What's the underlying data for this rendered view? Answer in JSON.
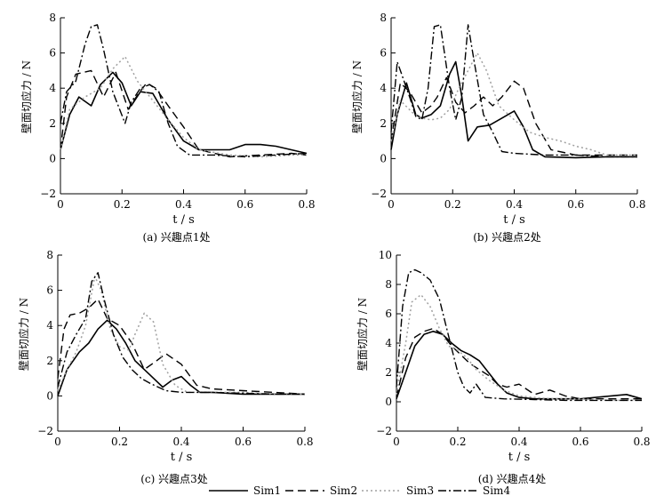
{
  "chart_data": [
    {
      "type": "line",
      "caption": "(a) 兴趣点1处",
      "xlabel": "t / s",
      "ylabel": "壁面切应力 / N",
      "xlim": [
        0,
        0.8
      ],
      "ylim": [
        -2,
        8
      ],
      "xticks": [
        0,
        0.2,
        0.4,
        0.6,
        0.8
      ],
      "xtick_labels": [
        "0",
        "0.2",
        "0.4",
        "0.6",
        "0.8"
      ],
      "yticks": [
        -2,
        0,
        2,
        4,
        6,
        8
      ],
      "ytick_labels": [
        "−2",
        "0",
        "2",
        "4",
        "6",
        "8"
      ],
      "series": [
        {
          "name": "Sim1",
          "x": [
            0,
            0.03,
            0.06,
            0.1,
            0.13,
            0.17,
            0.2,
            0.23,
            0.26,
            0.3,
            0.35,
            0.4,
            0.45,
            0.5,
            0.55,
            0.6,
            0.65,
            0.7,
            0.75,
            0.8
          ],
          "y": [
            0.5,
            2.5,
            3.5,
            3.0,
            4.2,
            4.9,
            4.3,
            3.0,
            3.8,
            3.7,
            2.2,
            1.0,
            0.5,
            0.5,
            0.5,
            0.8,
            0.8,
            0.7,
            0.5,
            0.3
          ]
        },
        {
          "name": "Sim2",
          "x": [
            0,
            0.02,
            0.05,
            0.1,
            0.14,
            0.18,
            0.22,
            0.25,
            0.28,
            0.31,
            0.35,
            0.4,
            0.45,
            0.55,
            0.65,
            0.75,
            0.8
          ],
          "y": [
            0.5,
            3.5,
            4.8,
            5.0,
            3.5,
            4.9,
            2.8,
            3.6,
            4.3,
            4.0,
            3.0,
            1.8,
            0.5,
            0.1,
            0.2,
            0.3,
            0.2
          ]
        },
        {
          "name": "Sim3",
          "x": [
            0,
            0.03,
            0.08,
            0.13,
            0.17,
            0.21,
            0.25,
            0.3,
            0.35,
            0.4,
            0.45,
            0.55,
            0.65,
            0.75,
            0.8
          ],
          "y": [
            0.5,
            2.8,
            3.5,
            4.0,
            5.1,
            5.8,
            4.4,
            3.3,
            2.2,
            1.2,
            0.5,
            0.2,
            0.1,
            0.2,
            0.2
          ]
        },
        {
          "name": "Sim4",
          "x": [
            0,
            0.02,
            0.05,
            0.08,
            0.1,
            0.12,
            0.14,
            0.17,
            0.21,
            0.23,
            0.26,
            0.29,
            0.32,
            0.35,
            0.38,
            0.42,
            0.5,
            0.6,
            0.7,
            0.8
          ],
          "y": [
            2,
            3.8,
            4.4,
            6.5,
            7.5,
            7.6,
            6.2,
            3.8,
            2.0,
            3.2,
            4.0,
            4.2,
            3.8,
            2.0,
            0.7,
            0.2,
            0.2,
            0.1,
            0.2,
            0.3
          ]
        }
      ]
    },
    {
      "type": "line",
      "caption": "(b) 兴趣点2处",
      "xlabel": "t / s",
      "ylabel": "壁面切应力 / N",
      "xlim": [
        0,
        0.8
      ],
      "ylim": [
        -2,
        8
      ],
      "xticks": [
        0,
        0.2,
        0.4,
        0.6,
        0.8
      ],
      "xtick_labels": [
        "0",
        "0.2",
        "0.4",
        "0.6",
        "0.8"
      ],
      "yticks": [
        -2,
        0,
        2,
        4,
        6,
        8
      ],
      "ytick_labels": [
        "−2",
        "0",
        "2",
        "4",
        "6",
        "8"
      ],
      "series": [
        {
          "name": "Sim1",
          "x": [
            0,
            0.02,
            0.05,
            0.08,
            0.1,
            0.13,
            0.16,
            0.19,
            0.21,
            0.23,
            0.25,
            0.28,
            0.32,
            0.36,
            0.4,
            0.43,
            0.46,
            0.5,
            0.6,
            0.7,
            0.8
          ],
          "y": [
            0.5,
            2.5,
            4.3,
            2.5,
            2.3,
            2.5,
            3.0,
            4.8,
            5.5,
            3.5,
            1.0,
            1.8,
            1.9,
            2.3,
            2.7,
            1.8,
            0.5,
            0.1,
            0.05,
            0.1,
            0.1
          ]
        },
        {
          "name": "Sim2",
          "x": [
            0,
            0.03,
            0.06,
            0.1,
            0.13,
            0.15,
            0.18,
            0.21,
            0.24,
            0.27,
            0.3,
            0.33,
            0.36,
            0.4,
            0.43,
            0.47,
            0.52,
            0.6,
            0.7,
            0.8
          ],
          "y": [
            1,
            4.3,
            3.8,
            2.6,
            3.0,
            3.5,
            4.6,
            3.2,
            2.6,
            3.0,
            3.5,
            3.0,
            3.5,
            4.4,
            4.0,
            2.0,
            0.5,
            0.2,
            0.2,
            0.2
          ]
        },
        {
          "name": "Sim3",
          "x": [
            0,
            0.03,
            0.07,
            0.1,
            0.13,
            0.16,
            0.19,
            0.22,
            0.25,
            0.28,
            0.31,
            0.35,
            0.4,
            0.45,
            0.5,
            0.55,
            0.6,
            0.65,
            0.7,
            0.8
          ],
          "y": [
            1,
            3.3,
            2.6,
            2.3,
            2.2,
            2.3,
            2.8,
            4.0,
            5.0,
            6.0,
            5.0,
            3.0,
            2.2,
            1.5,
            1.2,
            1.0,
            0.7,
            0.5,
            0.2,
            0.2
          ]
        },
        {
          "name": "Sim4",
          "x": [
            0,
            0.02,
            0.04,
            0.06,
            0.08,
            0.1,
            0.12,
            0.14,
            0.16,
            0.19,
            0.21,
            0.23,
            0.25,
            0.27,
            0.3,
            0.33,
            0.36,
            0.4,
            0.5,
            0.6,
            0.7,
            0.8
          ],
          "y": [
            1.5,
            5.5,
            4.5,
            3.5,
            2.4,
            2.2,
            4.0,
            7.5,
            7.6,
            4.0,
            2.2,
            3.5,
            7.6,
            5.5,
            2.5,
            1.5,
            0.4,
            0.3,
            0.2,
            0.2,
            0.1,
            0.1
          ]
        }
      ]
    },
    {
      "type": "line",
      "caption": "(c) 兴趣点3处",
      "xlabel": "t / s",
      "ylabel": "壁面切应力 / N",
      "xlim": [
        0,
        0.8
      ],
      "ylim": [
        -2,
        8
      ],
      "xticks": [
        0,
        0.2,
        0.4,
        0.6,
        0.8
      ],
      "xtick_labels": [
        "0",
        "0.2",
        "0.4",
        "0.6",
        "0.8"
      ],
      "yticks": [
        -2,
        0,
        2,
        4,
        6,
        8
      ],
      "ytick_labels": [
        "−2",
        "0",
        "2",
        "4",
        "6",
        "8"
      ],
      "series": [
        {
          "name": "Sim1",
          "x": [
            0,
            0.03,
            0.07,
            0.1,
            0.13,
            0.16,
            0.19,
            0.22,
            0.25,
            0.28,
            0.31,
            0.34,
            0.37,
            0.4,
            0.43,
            0.46,
            0.5,
            0.6,
            0.7,
            0.8
          ],
          "y": [
            0,
            1.5,
            2.5,
            3.0,
            3.8,
            4.3,
            3.8,
            3.0,
            2.0,
            1.5,
            1.0,
            0.5,
            0.9,
            1.1,
            0.6,
            0.2,
            0.2,
            0.1,
            0.1,
            0.1
          ]
        },
        {
          "name": "Sim2",
          "x": [
            0,
            0.02,
            0.04,
            0.07,
            0.1,
            0.13,
            0.16,
            0.2,
            0.24,
            0.28,
            0.32,
            0.35,
            0.4,
            0.45,
            0.5,
            0.6,
            0.7,
            0.8
          ],
          "y": [
            1,
            3.8,
            4.6,
            4.7,
            5.0,
            5.5,
            4.4,
            4.0,
            3.0,
            1.5,
            2.0,
            2.4,
            1.8,
            0.6,
            0.4,
            0.3,
            0.2,
            0.1
          ]
        },
        {
          "name": "Sim3",
          "x": [
            0,
            0.03,
            0.06,
            0.09,
            0.12,
            0.14,
            0.17,
            0.2,
            0.23,
            0.25,
            0.28,
            0.31,
            0.34,
            0.38,
            0.42,
            0.5,
            0.6,
            0.7,
            0.8
          ],
          "y": [
            0.3,
            1.5,
            2.5,
            4.0,
            6.8,
            6.0,
            3.8,
            2.8,
            2.6,
            3.5,
            4.7,
            4.2,
            1.8,
            0.6,
            0.2,
            0.2,
            0.2,
            0.1,
            0.1
          ]
        },
        {
          "name": "Sim4",
          "x": [
            0,
            0.03,
            0.06,
            0.09,
            0.11,
            0.13,
            0.15,
            0.18,
            0.21,
            0.24,
            0.27,
            0.3,
            0.35,
            0.4,
            0.5,
            0.6,
            0.7,
            0.8
          ],
          "y": [
            0.5,
            2.5,
            3.5,
            4.4,
            6.5,
            7.0,
            5.5,
            3.5,
            2.2,
            1.5,
            1.0,
            0.7,
            0.3,
            0.2,
            0.2,
            0.15,
            0.1,
            0.1
          ]
        }
      ]
    },
    {
      "type": "line",
      "caption": "(d) 兴趣点4处",
      "xlabel": "t / s",
      "ylabel": "壁面切应力 / N",
      "xlim": [
        0,
        0.8
      ],
      "ylim": [
        -2,
        10
      ],
      "xticks": [
        0,
        0.2,
        0.4,
        0.6,
        0.8
      ],
      "xtick_labels": [
        "0",
        "0.2",
        "0.4",
        "0.6",
        "0.8"
      ],
      "yticks": [
        -2,
        0,
        2,
        4,
        6,
        8,
        10
      ],
      "ytick_labels": [
        "−2",
        "0",
        "2",
        "4",
        "6",
        "8",
        "10"
      ],
      "series": [
        {
          "name": "Sim1",
          "x": [
            0,
            0.03,
            0.06,
            0.09,
            0.12,
            0.15,
            0.18,
            0.21,
            0.24,
            0.27,
            0.3,
            0.33,
            0.36,
            0.4,
            0.45,
            0.5,
            0.6,
            0.7,
            0.75,
            0.8
          ],
          "y": [
            0.2,
            2.0,
            3.8,
            4.6,
            4.8,
            4.6,
            4.0,
            3.5,
            3.2,
            2.8,
            2.0,
            1.2,
            0.6,
            0.3,
            0.2,
            0.2,
            0.2,
            0.4,
            0.5,
            0.2
          ]
        },
        {
          "name": "Sim2",
          "x": [
            0,
            0.03,
            0.06,
            0.09,
            0.12,
            0.15,
            0.18,
            0.21,
            0.24,
            0.27,
            0.3,
            0.33,
            0.36,
            0.4,
            0.45,
            0.5,
            0.55,
            0.6,
            0.7,
            0.8
          ],
          "y": [
            0.3,
            3.0,
            4.4,
            4.8,
            5.0,
            4.6,
            3.8,
            3.2,
            2.6,
            2.2,
            1.8,
            1.2,
            1.0,
            1.2,
            0.5,
            0.8,
            0.4,
            0.2,
            0.2,
            0.2
          ]
        },
        {
          "name": "Sim3",
          "x": [
            0,
            0.03,
            0.05,
            0.08,
            0.11,
            0.14,
            0.17,
            0.2,
            0.23,
            0.26,
            0.3,
            0.35,
            0.4,
            0.5,
            0.6,
            0.7,
            0.8
          ],
          "y": [
            0.5,
            4.0,
            6.8,
            7.3,
            6.5,
            5.0,
            3.8,
            3.5,
            3.0,
            2.2,
            1.5,
            0.8,
            0.4,
            0.2,
            0.2,
            0.1,
            0.1
          ]
        },
        {
          "name": "Sim4",
          "x": [
            0,
            0.02,
            0.04,
            0.06,
            0.08,
            0.11,
            0.14,
            0.17,
            0.2,
            0.22,
            0.24,
            0.26,
            0.29,
            0.35,
            0.45,
            0.55,
            0.65,
            0.75,
            0.8
          ],
          "y": [
            1,
            6.5,
            8.8,
            9.0,
            8.8,
            8.3,
            7.0,
            4.5,
            2.0,
            1.0,
            0.6,
            1.2,
            0.3,
            0.2,
            0.15,
            0.1,
            0.1,
            0.1,
            0.1
          ]
        }
      ]
    }
  ],
  "legend": [
    {
      "name": "Sim1",
      "dash": "solid"
    },
    {
      "name": "Sim2",
      "dash": "long-dash"
    },
    {
      "name": "Sim3",
      "dash": "dot"
    },
    {
      "name": "Sim4",
      "dash": "dash-dot"
    }
  ],
  "colors": {
    "line": "#000000",
    "sim3": "#a0a0a0"
  }
}
